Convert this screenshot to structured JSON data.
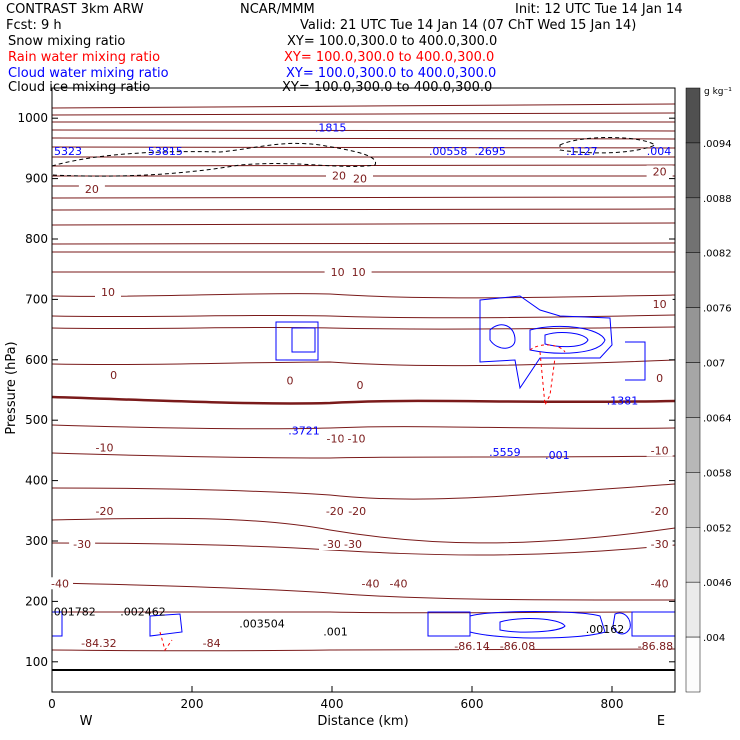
{
  "header": {
    "left1": "CONTRAST  3km ARW",
    "left2": "Fcst:    9 h",
    "center": "NCAR/MMM",
    "init": "Init: 12 UTC Tue 14 Jan 14",
    "valid": "Valid: 21 UTC Tue 14 Jan 14 (07 ChT Wed 15 Jan 14)",
    "fields": [
      {
        "name": "Snow mixing ratio",
        "xy": "XY= 100.0,300.0 to 400.0,300.0",
        "color": "#000000"
      },
      {
        "name": "Rain water mixing ratio",
        "xy": "XY= 100.0,300.0 to 400.0,300.0",
        "color": "#ff0000"
      },
      {
        "name": "Cloud water mixing ratio",
        "xy": "XY= 100.0,300.0 to 400.0,300.0",
        "color": "#0000ff"
      },
      {
        "name": "Cloud ice mixing ratio",
        "xy": "XY= 100.0,300.0 to 400.0,300.0",
        "color": "#000000"
      }
    ]
  },
  "chart_data": {
    "type": "contour",
    "xlabel": "Distance (km)",
    "ylabel": "Pressure (hPa)",
    "xlim": [
      0,
      890
    ],
    "ylim": [
      1050,
      50
    ],
    "x_ticks": [
      0,
      200,
      400,
      600,
      800
    ],
    "y_ticks": [
      100,
      200,
      300,
      400,
      500,
      600,
      700,
      800,
      900,
      1000
    ],
    "direction_labels": {
      "left": "W",
      "right": "E"
    },
    "colorbar": {
      "unit": "g kg⁻¹",
      "ticks": [
        ".0094",
        ".0088",
        ".0082",
        ".0076",
        ".007",
        ".0064",
        ".0058",
        ".0052",
        ".0046",
        ".004"
      ]
    },
    "temperature_contours": [
      {
        "label": "-84.32",
        "x": 67,
        "p": 131
      },
      {
        "label": "-84",
        "x": 228,
        "p": 131
      },
      {
        "label": "-86.14",
        "x": 600,
        "p": 126
      },
      {
        "label": "-86.08",
        "x": 665,
        "p": 126
      },
      {
        "label": "-86.88",
        "x": 862,
        "p": 126
      },
      {
        "label": "-40",
        "x": -8,
        "p": 230
      },
      {
        "label": "-40",
        "x": 455,
        "p": 230
      },
      {
        "label": "-40",
        "x": 495,
        "p": 230
      },
      {
        "label": "-40",
        "x": 868,
        "p": 230
      },
      {
        "label": "-30",
        "x": 43,
        "p": 295
      },
      {
        "label": "-30",
        "x": 400,
        "p": 295
      },
      {
        "label": "-30",
        "x": 430,
        "p": 295
      },
      {
        "label": "-30",
        "x": 868,
        "p": 295
      },
      {
        "label": "-20",
        "x": 75,
        "p": 350
      },
      {
        "label": "-20",
        "x": 404,
        "p": 350
      },
      {
        "label": "-20",
        "x": 436,
        "p": 350
      },
      {
        "label": "-20",
        "x": 868,
        "p": 350
      },
      {
        "label": "-10",
        "x": 75,
        "p": 455
      },
      {
        "label": "-10",
        "x": 405,
        "p": 470
      },
      {
        "label": "-10",
        "x": 435,
        "p": 470
      },
      {
        "label": "-10",
        "x": 868,
        "p": 450
      },
      {
        "label": "0",
        "x": 88,
        "p": 575
      },
      {
        "label": "0",
        "x": 340,
        "p": 566
      },
      {
        "label": "0",
        "x": 440,
        "p": 558
      },
      {
        "label": "0",
        "x": 868,
        "p": 570
      },
      {
        "label": "10",
        "x": 80,
        "p": 712
      },
      {
        "label": "10",
        "x": 408,
        "p": 745
      },
      {
        "label": "10",
        "x": 438,
        "p": 745
      },
      {
        "label": "10",
        "x": 868,
        "p": 692
      },
      {
        "label": "20",
        "x": 57,
        "p": 883
      },
      {
        "label": "20",
        "x": 410,
        "p": 905
      },
      {
        "label": "20",
        "x": 440,
        "p": 900
      },
      {
        "label": "20",
        "x": 868,
        "p": 912
      }
    ],
    "maxima": [
      {
        "label": ".001782",
        "x": 30,
        "p": 183,
        "color": "#000000"
      },
      {
        "label": ".002462",
        "x": 130,
        "p": 183,
        "color": "#000000"
      },
      {
        "label": ".003504",
        "x": 300,
        "p": 163,
        "color": "#000000"
      },
      {
        "label": ".001",
        "x": 405,
        "p": 150,
        "color": "#000000"
      },
      {
        "label": ".00162",
        "x": 790,
        "p": 154,
        "color": "#000000"
      },
      {
        "label": ".3721",
        "x": 360,
        "p": 483,
        "color": "#0000ff"
      },
      {
        "label": ".5559",
        "x": 647,
        "p": 447,
        "color": "#0000ff"
      },
      {
        "label": ".001",
        "x": 722,
        "p": 442,
        "color": "#0000ff"
      },
      {
        "label": ".1381",
        "x": 815,
        "p": 533,
        "color": "#0000ff"
      },
      {
        "label": "5323",
        "x": 7,
        "p": 946,
        "color": "#0000ff"
      },
      {
        "label": "53815",
        "x": 162,
        "p": 946,
        "color": "#0000ff"
      },
      {
        "label": ".1815",
        "x": 398,
        "p": 985,
        "color": "#0000ff"
      },
      {
        "label": ".00558",
        "x": 566,
        "p": 946,
        "color": "#0000ff"
      },
      {
        "label": ".2695",
        "x": 626,
        "p": 946,
        "color": "#0000ff"
      },
      {
        "label": ".1127",
        "x": 757,
        "p": 946,
        "color": "#0000ff"
      },
      {
        "label": ".004",
        "x": 876,
        "p": 946,
        "color": "#0000ff"
      }
    ]
  }
}
